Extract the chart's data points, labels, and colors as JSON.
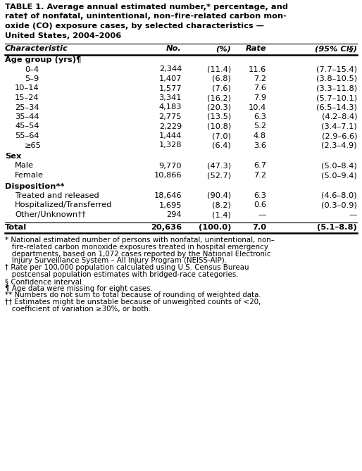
{
  "title_lines": [
    "TABLE 1. Average annual estimated number,* percentage, and",
    "rate† of nonfatal, unintentional, non–fire-related carbon mon-",
    "oxide (CO) exposure cases, by selected characteristics —",
    "United States, 2004–2006"
  ],
  "sections": [
    {
      "header": "Age group (yrs)¶",
      "rows": [
        {
          "label": "0–4",
          "indent": 2,
          "no": "2,344",
          "pct": "(11.4)",
          "rate": "11.6",
          "ci": "(7.7–15.4)"
        },
        {
          "label": "5–9",
          "indent": 2,
          "no": "1,407",
          "pct": "(6.8)",
          "rate": "7.2",
          "ci": "(3.8–10.5)"
        },
        {
          "label": "10–14",
          "indent": 1,
          "no": "1,577",
          "pct": "(7.6)",
          "rate": "7.6",
          "ci": "(3.3–11.8)"
        },
        {
          "label": "15–24",
          "indent": 1,
          "no": "3,341",
          "pct": "(16.2)",
          "rate": "7.9",
          "ci": "(5.7–10.1)"
        },
        {
          "label": "25–34",
          "indent": 1,
          "no": "4,183",
          "pct": "(20.3)",
          "rate": "10.4",
          "ci": "(6.5–14.3)"
        },
        {
          "label": "35–44",
          "indent": 1,
          "no": "2,775",
          "pct": "(13.5)",
          "rate": "6.3",
          "ci": "(4.2–8.4)"
        },
        {
          "label": "45–54",
          "indent": 1,
          "no": "2,229",
          "pct": "(10.8)",
          "rate": "5.2",
          "ci": "(3.4–7.1)"
        },
        {
          "label": "55–64",
          "indent": 1,
          "no": "1,444",
          "pct": "(7.0)",
          "rate": "4.8",
          "ci": "(2.9–6.6)"
        },
        {
          "label": "≥65",
          "indent": 2,
          "no": "1,328",
          "pct": "(6.4)",
          "rate": "3.6",
          "ci": "(2.3–4.9)"
        }
      ]
    },
    {
      "header": "Sex",
      "rows": [
        {
          "label": "Male",
          "indent": 1,
          "no": "9,770",
          "pct": "(47.3)",
          "rate": "6.7",
          "ci": "(5.0–8.4)"
        },
        {
          "label": "Female",
          "indent": 1,
          "no": "10,866",
          "pct": "(52.7)",
          "rate": "7.2",
          "ci": "(5.0–9.4)"
        }
      ]
    },
    {
      "header": "Disposition**",
      "rows": [
        {
          "label": "Treated and released",
          "indent": 1,
          "no": "18,646",
          "pct": "(90.4)",
          "rate": "6.3",
          "ci": "(4.6–8.0)"
        },
        {
          "label": "Hospitalized/Transferred",
          "indent": 1,
          "no": "1,695",
          "pct": "(8.2)",
          "rate": "0.6",
          "ci": "(0.3–0.9)"
        },
        {
          "label": "Other/Unknown††",
          "indent": 1,
          "no": "294",
          "pct": "(1.4)",
          "rate": "—",
          "ci": "—"
        }
      ]
    }
  ],
  "total_row": {
    "label": "Total",
    "no": "20,636",
    "pct": "(100.0)",
    "rate": "7.0",
    "ci": "(5.1–8.8)"
  },
  "footnote_blocks": [
    {
      "symbol": "*",
      "lines": [
        " National estimated number of persons with nonfatal, unintentional, non–",
        "   fire-related carbon monoxide exposures treated in hospital emergency",
        "   departments, based on 1,072 cases reported by the National Electronic",
        "   Injury Surveillance System – All Injury Program (NEISS-AIP)."
      ]
    },
    {
      "symbol": "†",
      "lines": [
        " Rate per 100,000 population calculated using U.S. Census Bureau",
        "   postcensal population estimates with bridged-race categories."
      ]
    },
    {
      "symbol": "§",
      "lines": [
        " Confidence interval."
      ]
    },
    {
      "symbol": "¶",
      "lines": [
        " Age data were missing for eight cases."
      ]
    },
    {
      "symbol": "**",
      "lines": [
        " Numbers do not sum to total because of rounding of weighted data."
      ]
    },
    {
      "symbol": "††",
      "lines": [
        " Estimates might be unstable because of unweighted counts of <20,",
        "   coefficient of variation ≥30%, or both."
      ]
    }
  ],
  "bg_color": "#ffffff",
  "text_color": "#000000"
}
